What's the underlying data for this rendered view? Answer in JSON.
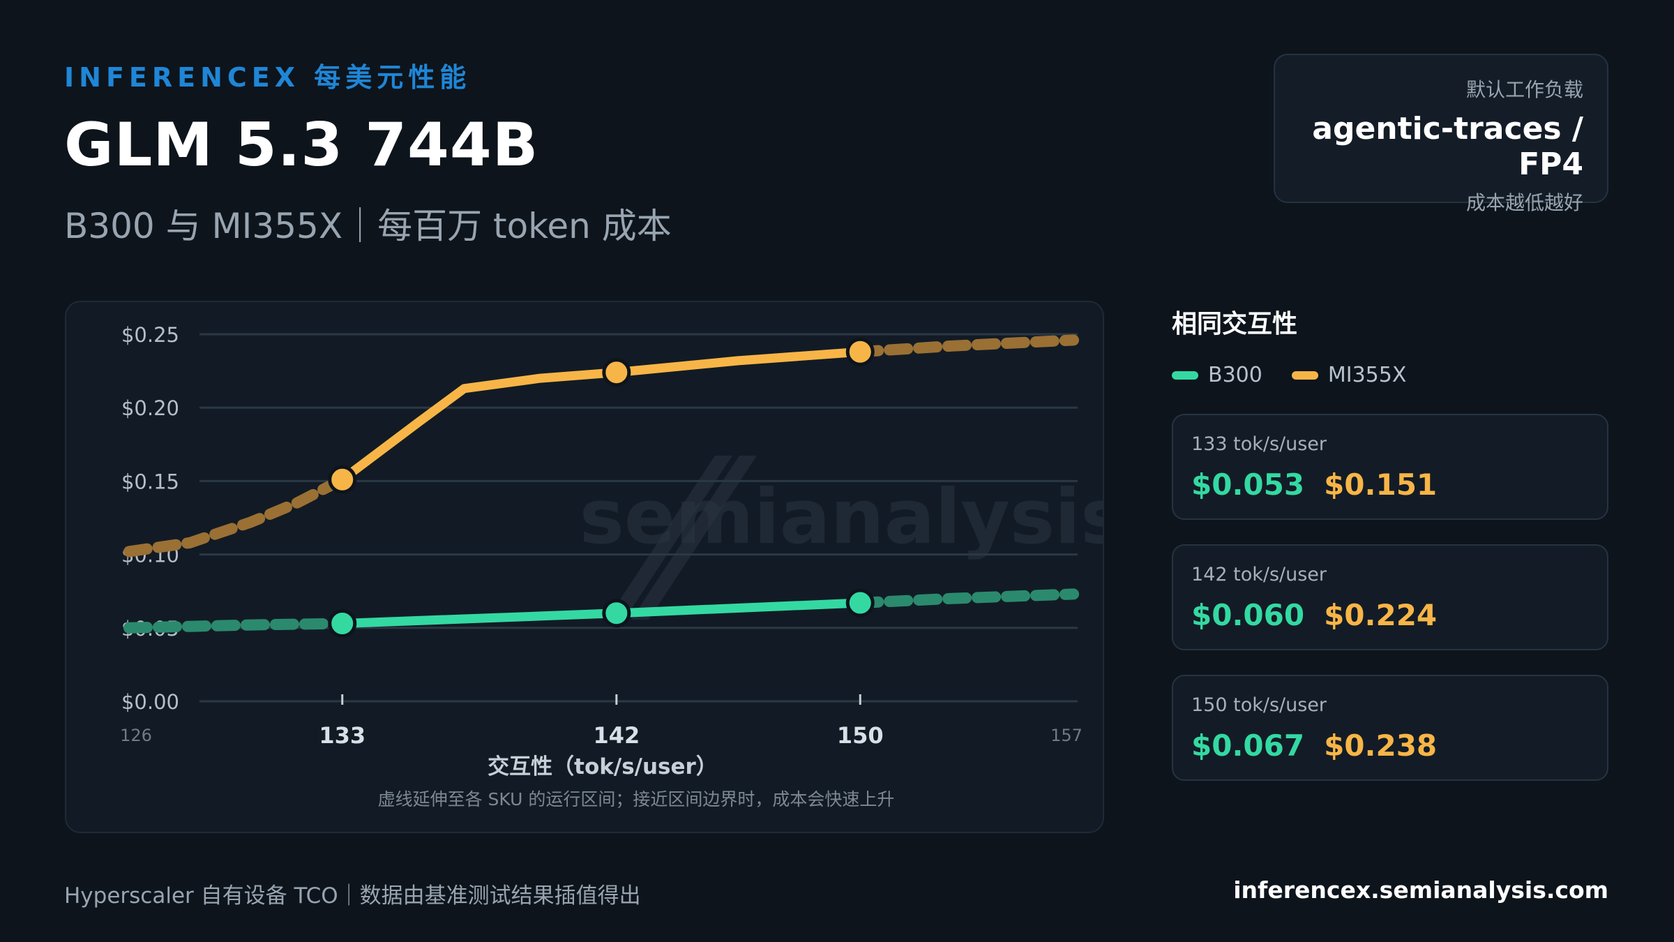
{
  "header": {
    "eyebrow": "INFERENCEX 每美元性能",
    "title": "GLM 5.3 744B",
    "subtitle": "B300 与 MI355X｜每百万 token 成本"
  },
  "workload": {
    "label": "默认工作负载",
    "value": "agentic-traces / FP4",
    "note": "成本越低越好"
  },
  "watermark": "semianalysis",
  "sidebar": {
    "heading": "相同交互性",
    "legend": [
      {
        "name": "B300",
        "color": "#34d9a2"
      },
      {
        "name": "MI355X",
        "color": "#f8b547"
      }
    ],
    "cards": [
      {
        "label": "133 tok/s/user",
        "b300": "$0.053",
        "mi355x": "$0.151"
      },
      {
        "label": "142 tok/s/user",
        "b300": "$0.060",
        "mi355x": "$0.224"
      },
      {
        "label": "150 tok/s/user",
        "b300": "$0.067",
        "mi355x": "$0.238"
      }
    ]
  },
  "footer": {
    "left": "Hyperscaler 自有设备 TCO｜数据由基准测试结果插值得出",
    "right": "inferencex.semianalysis.com"
  },
  "chart_data": {
    "type": "line",
    "xlabel": "交互性（tok/s/user）",
    "note": "虚线延伸至各 SKU 的运行区间；接近区间边界时，成本会快速上升",
    "xlim": [
      126,
      157
    ],
    "ylim": [
      0,
      0.25
    ],
    "yticks": [
      0,
      0.05,
      0.1,
      0.15,
      0.2,
      0.25
    ],
    "ytick_labels": [
      "$0.00",
      "$0.05",
      "$0.10",
      "$0.15",
      "$0.20",
      "$0.25"
    ],
    "xticks_minor": [
      126,
      157
    ],
    "xticks_major": [
      133,
      142,
      150
    ],
    "grid": true,
    "series": [
      {
        "name": "B300",
        "color": "#34d9a2",
        "dim_color": "#2b8a6d",
        "extrapolated_left": [
          [
            126,
            0.05
          ],
          [
            128,
            0.051
          ],
          [
            130,
            0.052
          ],
          [
            133,
            0.053
          ]
        ],
        "solid": [
          [
            133,
            0.053
          ],
          [
            142,
            0.06
          ],
          [
            150,
            0.067
          ]
        ],
        "extrapolated_right": [
          [
            150,
            0.067
          ],
          [
            153,
            0.07
          ],
          [
            157,
            0.073
          ]
        ],
        "markers": [
          [
            133,
            0.053
          ],
          [
            142,
            0.06
          ],
          [
            150,
            0.067
          ]
        ]
      },
      {
        "name": "MI355X",
        "color": "#f8b547",
        "dim_color": "#9a7034",
        "extrapolated_left": [
          [
            126,
            0.102
          ],
          [
            128,
            0.108
          ],
          [
            130,
            0.122
          ],
          [
            131.5,
            0.135
          ],
          [
            133,
            0.151
          ]
        ],
        "solid": [
          [
            133,
            0.151
          ],
          [
            135.5,
            0.19
          ],
          [
            137,
            0.213
          ],
          [
            139.5,
            0.22
          ],
          [
            142,
            0.224
          ],
          [
            146,
            0.232
          ],
          [
            150,
            0.238
          ]
        ],
        "extrapolated_right": [
          [
            150,
            0.238
          ],
          [
            153,
            0.242
          ],
          [
            157,
            0.246
          ]
        ],
        "markers": [
          [
            133,
            0.151
          ],
          [
            142,
            0.224
          ],
          [
            150,
            0.238
          ]
        ]
      }
    ]
  }
}
